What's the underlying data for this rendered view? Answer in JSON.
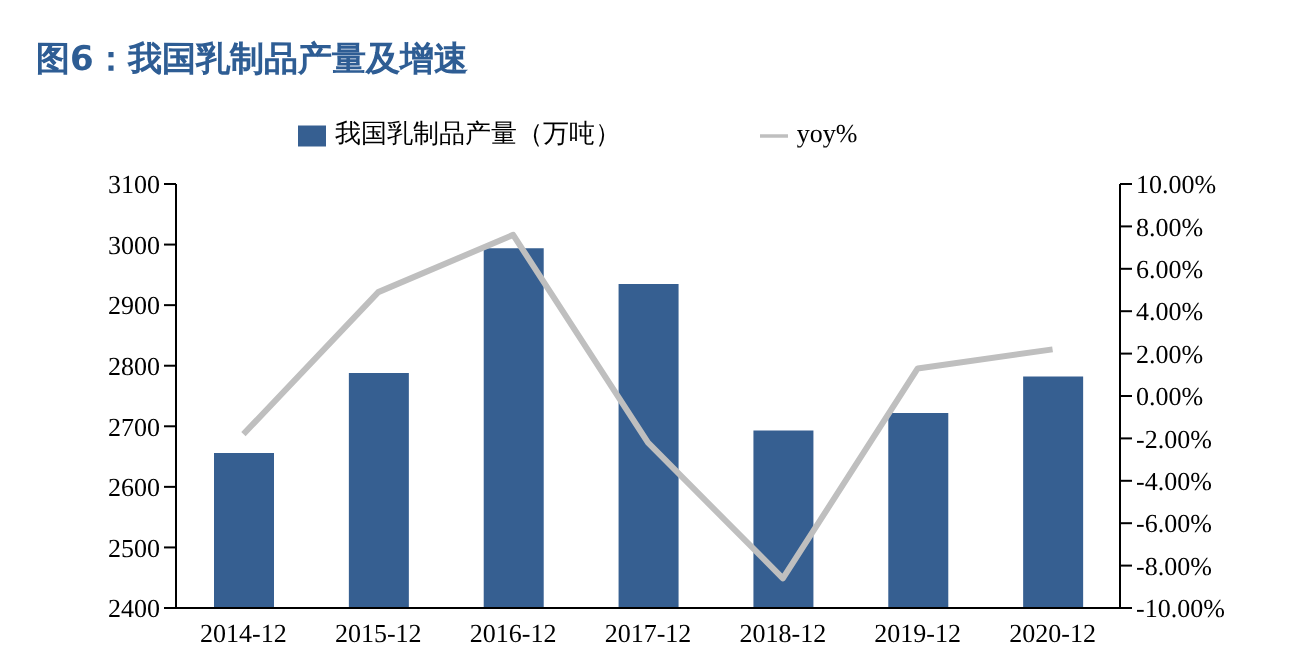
{
  "chart_data": {
    "type": "bar",
    "title": "图6：我国乳制品产量及增速",
    "categories": [
      "2014-12",
      "2015-12",
      "2016-12",
      "2017-12",
      "2018-12",
      "2019-12",
      "2020-12"
    ],
    "series": [
      {
        "name": "我国乳制品产量（万吨）",
        "color": "#365f91",
        "values": [
          2656,
          2788,
          2994,
          2935,
          2693,
          2722,
          2782
        ]
      },
      {
        "name": "yoy%",
        "type": "line",
        "axis": "y2",
        "color": "#bfbfbf",
        "values": [
          -1.8,
          4.9,
          7.6,
          -2.2,
          -8.6,
          1.3,
          2.2
        ]
      }
    ],
    "ylim": [
      2400,
      3100
    ],
    "yticks": [
      2400,
      2500,
      2600,
      2700,
      2800,
      2900,
      3000,
      3100
    ],
    "y2lim": [
      -10,
      10
    ],
    "y2ticks": [
      {
        "value": -10,
        "label": "-10.00%"
      },
      {
        "value": -8,
        "label": "-8.00%"
      },
      {
        "value": -6,
        "label": "-6.00%"
      },
      {
        "value": -4,
        "label": "-4.00%"
      },
      {
        "value": -2,
        "label": "-2.00%"
      },
      {
        "value": 0,
        "label": "0.00%"
      },
      {
        "value": 2,
        "label": "2.00%"
      },
      {
        "value": 4,
        "label": "4.00%"
      },
      {
        "value": 6,
        "label": "6.00%"
      },
      {
        "value": 8,
        "label": "8.00%"
      },
      {
        "value": 10,
        "label": "10.00%"
      }
    ],
    "legend": "top",
    "grid": false,
    "marker": "none"
  }
}
